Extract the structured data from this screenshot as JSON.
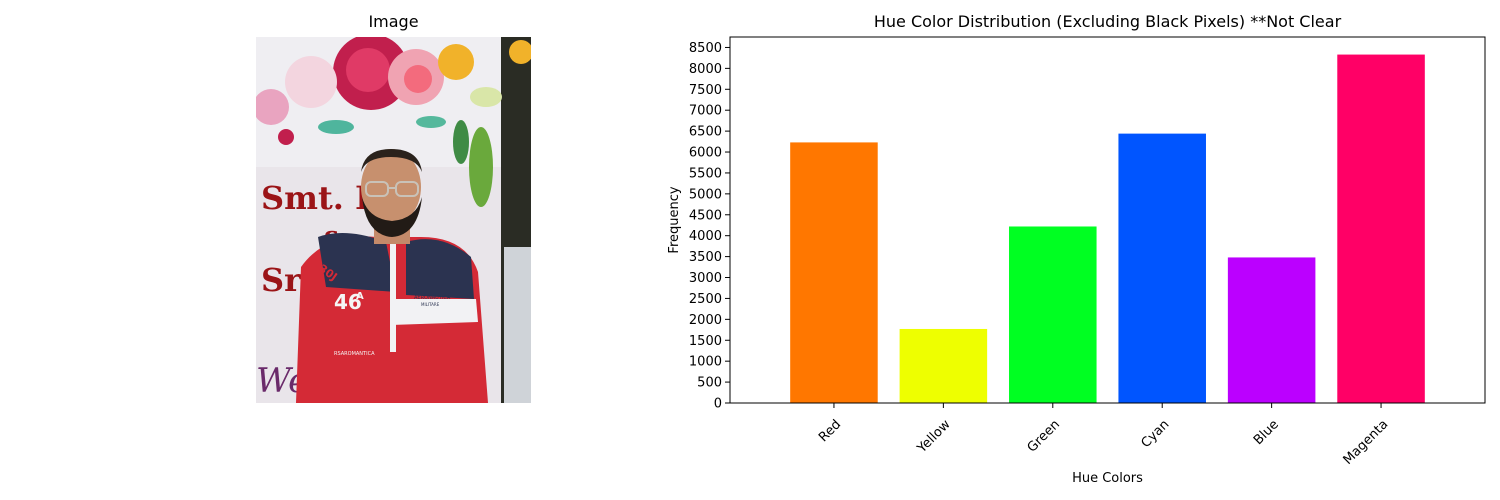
{
  "image_panel": {
    "title": "Image",
    "photo": {
      "banner_lines": [
        "Smt. La",
        "&",
        "Sri."
      ],
      "banner_bottom": "We",
      "shirt_number": "46",
      "shirt_letter": "A",
      "sleeve_text": "30J",
      "chest_brand": "AERONAUTICA",
      "chest_sub": "MILITARE",
      "lower_text": "RSAROMANTICA"
    }
  },
  "chart_data": {
    "type": "bar",
    "title": "Hue Color Distribution (Excluding Black Pixels) **Not Clear",
    "xlabel": "Hue Colors",
    "ylabel": "Frequency",
    "categories": [
      "Red",
      "Yellow",
      "Green",
      "Cyan",
      "Blue",
      "Magenta"
    ],
    "values": [
      6230,
      1770,
      4220,
      6440,
      3480,
      8330
    ],
    "colors": [
      "#ff7700",
      "#eeff00",
      "#00ff22",
      "#0055ff",
      "#bb00ff",
      "#ff0066"
    ],
    "ylim": [
      0,
      8750
    ],
    "yticks": [
      0,
      500,
      1000,
      1500,
      2000,
      2500,
      3000,
      3500,
      4000,
      4500,
      5000,
      5500,
      6000,
      6500,
      7000,
      7500,
      8000,
      8500
    ],
    "xtick_rotation": 45,
    "grid": false,
    "legend": "none"
  }
}
